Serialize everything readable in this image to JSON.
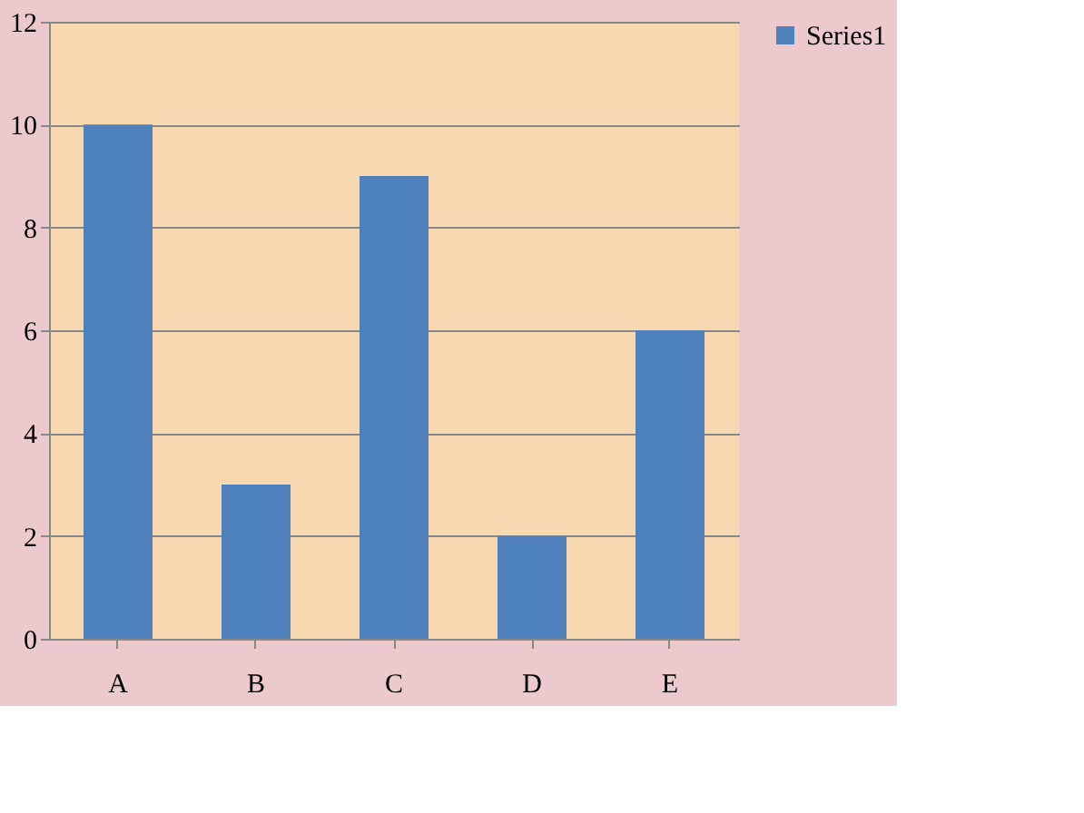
{
  "chart_data": {
    "type": "bar",
    "categories": [
      "A",
      "B",
      "C",
      "D",
      "E"
    ],
    "series": [
      {
        "name": "Series1",
        "color": "#4f81bd",
        "values": [
          10,
          3,
          9,
          2,
          6
        ]
      }
    ],
    "ylim": [
      0,
      12
    ],
    "yticks": [
      0,
      2,
      4,
      6,
      8,
      10,
      12
    ],
    "grid": "y",
    "legend": "right"
  }
}
